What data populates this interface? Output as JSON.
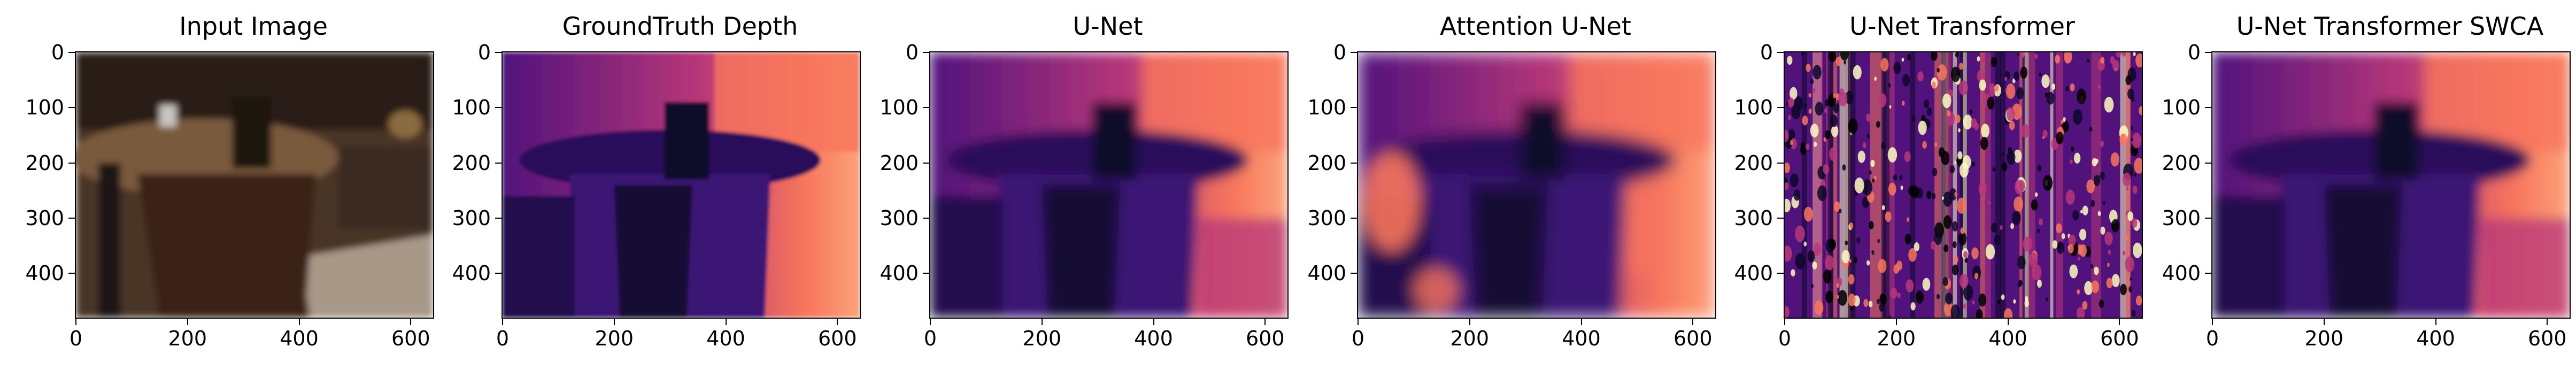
{
  "figure": {
    "y_ticks": [
      "0",
      "100",
      "200",
      "300",
      "400"
    ],
    "x_ticks": [
      "0",
      "200",
      "400",
      "600"
    ],
    "panels": [
      {
        "title": "Input Image",
        "kind": "rgb"
      },
      {
        "title": "GroundTruth Depth",
        "kind": "depth"
      },
      {
        "title": "U-Net",
        "kind": "depth-smooth"
      },
      {
        "title": "Attention U-Net",
        "kind": "depth-attn"
      },
      {
        "title": "U-Net Transformer",
        "kind": "noise"
      },
      {
        "title": "U-Net Transformer SWCA",
        "kind": "depth-swca"
      }
    ]
  },
  "colors": {
    "magma_dark": "#0d0829",
    "magma_purple": "#51127c",
    "magma_magenta": "#b73779",
    "magma_orange": "#f8765c",
    "magma_light": "#fcfdbf",
    "room_brown": "#4a3425",
    "counter": "#7a5a3c",
    "floor": "#a89888"
  }
}
